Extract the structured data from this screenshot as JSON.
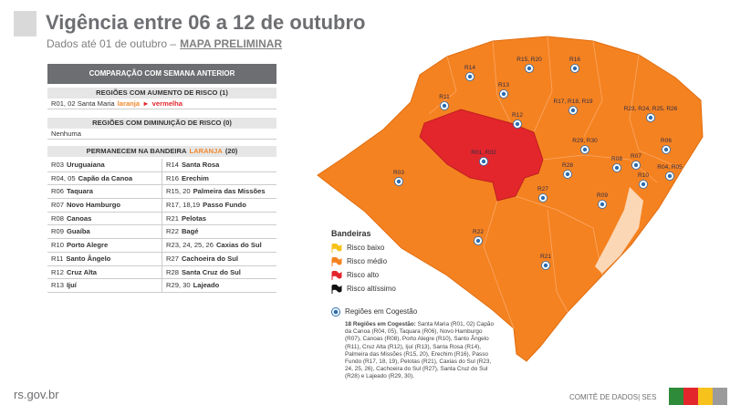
{
  "header": {
    "title": "Vigência entre 06 a 12 de outubro",
    "subtitle": "Dados até 01 de outubro –",
    "subtitle_emphasis": "MAPA PRELIMINAR"
  },
  "table": {
    "title": "COMPARAÇÃO COM SEMANA ANTERIOR",
    "increase": {
      "heading": "REGIÕES COM AUMENTO DE RISCO (1)",
      "region": "R01, 02 Santa Maria",
      "from": "laranja",
      "arrow": "►",
      "to": "vermelha"
    },
    "decrease": {
      "heading": "REGIÕES COM DIMINUIÇÃO DE RISCO (0)",
      "text": "Nenhuma"
    },
    "remain": {
      "heading": "PERMANECEM NA BANDEIRA",
      "flag": "LARANJA",
      "count": "(20)",
      "rows": [
        [
          "R03",
          "Uruguaiana",
          "R14",
          "Santa Rosa"
        ],
        [
          "R04, 05",
          "Capão da Canoa",
          "R16",
          "Erechim"
        ],
        [
          "R06",
          "Taquara",
          "R15, 20",
          "Palmeira das Missões"
        ],
        [
          "R07",
          "Novo Hamburgo",
          "R17, 18,19",
          "Passo Fundo"
        ],
        [
          "R08",
          "Canoas",
          "R21",
          "Pelotas"
        ],
        [
          "R09",
          "Guaíba",
          "R22",
          "Bagé"
        ],
        [
          "R10",
          "Porto Alegre",
          "R23, 24, 25, 26",
          "Caxias do Sul"
        ],
        [
          "R11",
          "Santo Ângelo",
          "R27",
          "Cachoeira do Sul"
        ],
        [
          "R12",
          "Cruz Alta",
          "R28",
          "Santa Cruz do Sul"
        ],
        [
          "R13",
          "Ijuí",
          "R29, 30",
          "Lajeado"
        ]
      ]
    }
  },
  "map": {
    "regions": [
      "R14",
      "R15, R20",
      "R16",
      "R13",
      "R11",
      "R12",
      "R17, R18, R19",
      "R23, R24, R25, R26",
      "R29, R30",
      "R06",
      "R01, R02",
      "R03",
      "R28",
      "R07",
      "R08",
      "R10",
      "R04, R05",
      "R27",
      "R09",
      "R22",
      "R21"
    ],
    "legend": {
      "title": "Bandeiras",
      "items": [
        "Risco baixo",
        "Risco médio",
        "Risco alto",
        "Risco altíssimo"
      ],
      "cogestao": "Regiões em Cogestão"
    },
    "note": {
      "title": "18 Regiões em Cogestão:",
      "text": "Santa Maria (R01, 02) Capão da Canoa (R04, 05), Taquara (R06), Novo Hamburgo (R07), Canoas (R08), Porto Alegre (R10), Santo Ângelo (R11), Cruz Alta (R12), Ijuí (R13), Santa Rosa (R14), Palmeira das Missões (R15, 20), Erechim (R16), Passo Fundo (R17, 18, 19), Pelotas (R21), Caxias do Sul (R23, 24, 25, 26), Cachoeira do Sul (R27), Santa Cruz do Sul (R28) e Lajeado (R29, 30)."
    }
  },
  "footer": {
    "site": "rs.gov.br",
    "credit": "COMITÊ DE DADOS| SES"
  }
}
